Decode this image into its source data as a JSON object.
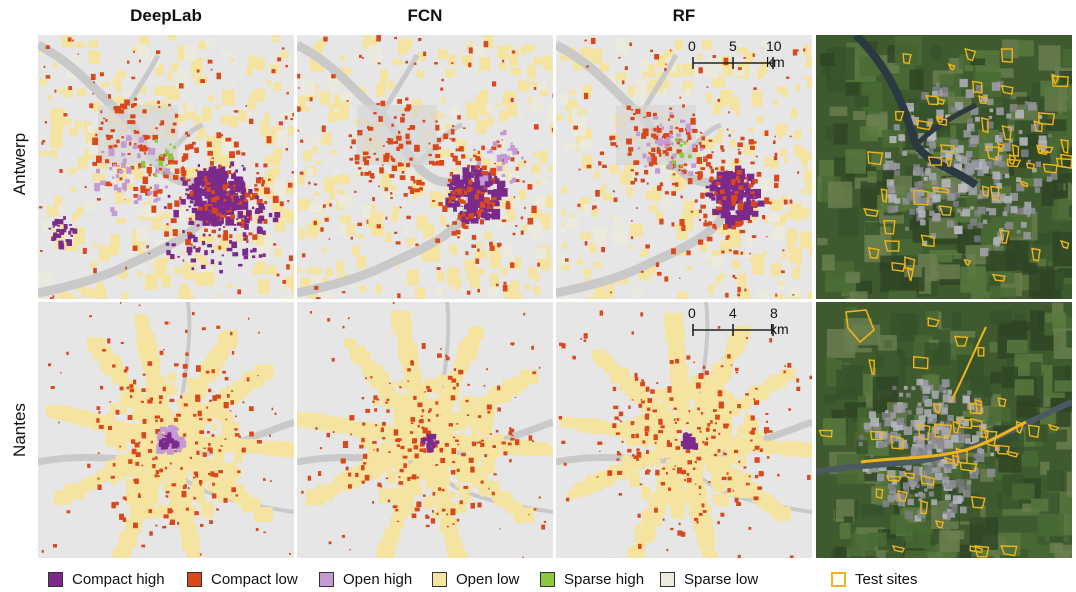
{
  "columns": [
    "DeepLab",
    "FCN",
    "RF"
  ],
  "rows": [
    "Antwerp",
    "Nantes"
  ],
  "scalebars": [
    {
      "labels": [
        "0",
        "5",
        "10 km"
      ]
    },
    {
      "labels": [
        "0",
        "4",
        "8 km"
      ]
    }
  ],
  "legend": [
    {
      "label": "Compact high",
      "color": "#7b2a8b"
    },
    {
      "label": "Compact low",
      "color": "#d9481a"
    },
    {
      "label": "Open high",
      "color": "#c39ad4"
    },
    {
      "label": "Open low",
      "color": "#f5e3a0"
    },
    {
      "label": "Sparse high",
      "color": "#8dc63f"
    },
    {
      "label": "Sparse low",
      "color": "#eceadc"
    },
    {
      "label": "Test sites",
      "color": "#f2b418"
    }
  ],
  "colors": {
    "background_map": "#e6e6e6",
    "water": "#c9c9c9",
    "satellite_base": "#3f5a2f",
    "test_site_outline": "#f2b418"
  }
}
